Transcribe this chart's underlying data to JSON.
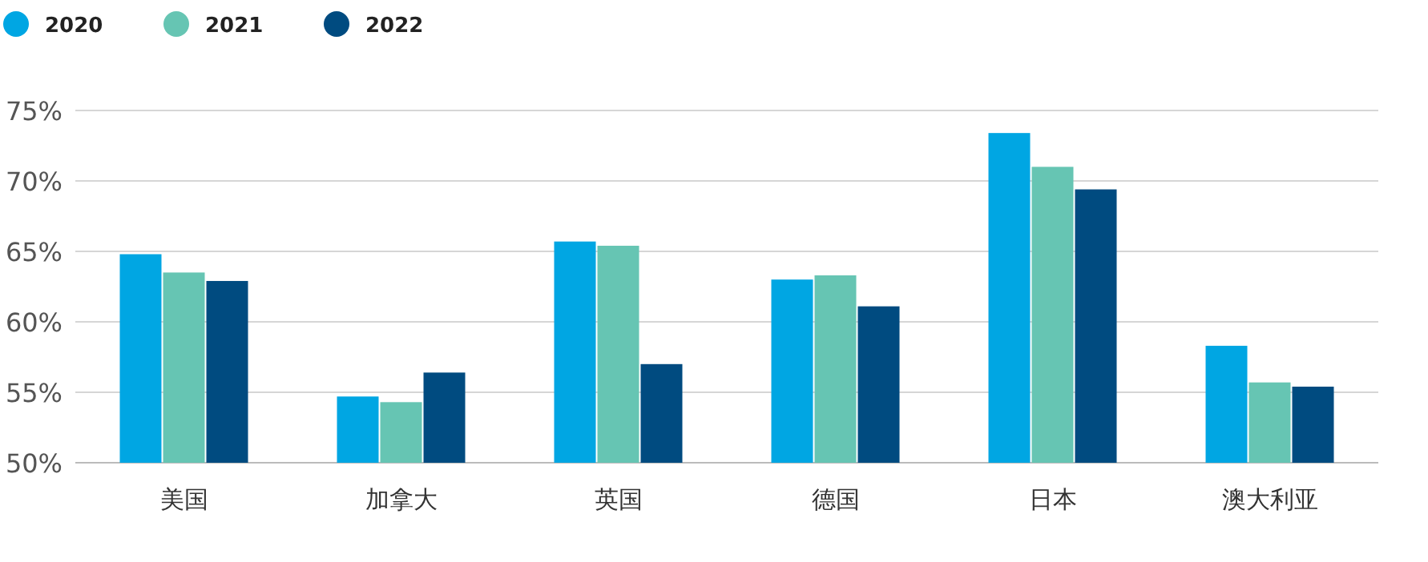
{
  "chart_data": {
    "type": "bar",
    "categories": [
      "美国",
      "加拿大",
      "英国",
      "德国",
      "日本",
      "澳大利亚"
    ],
    "series": [
      {
        "name": "2020",
        "color": "#00a6e3",
        "values": [
          64.8,
          54.7,
          65.7,
          63.0,
          73.4,
          58.3
        ]
      },
      {
        "name": "2021",
        "color": "#66c5b3",
        "values": [
          63.5,
          54.3,
          65.4,
          63.3,
          71.0,
          55.7
        ]
      },
      {
        "name": "2022",
        "color": "#004b80",
        "values": [
          62.9,
          56.4,
          57.0,
          61.1,
          69.4,
          55.4
        ]
      }
    ],
    "ylim": [
      50,
      75
    ],
    "yticks": [
      {
        "value": 50,
        "label": "50%"
      },
      {
        "value": 55,
        "label": "55%"
      },
      {
        "value": 60,
        "label": "60%"
      },
      {
        "value": 65,
        "label": "65%"
      },
      {
        "value": 70,
        "label": "70%"
      },
      {
        "value": 75,
        "label": "75%"
      }
    ],
    "grid": "y",
    "legend": "top left"
  }
}
